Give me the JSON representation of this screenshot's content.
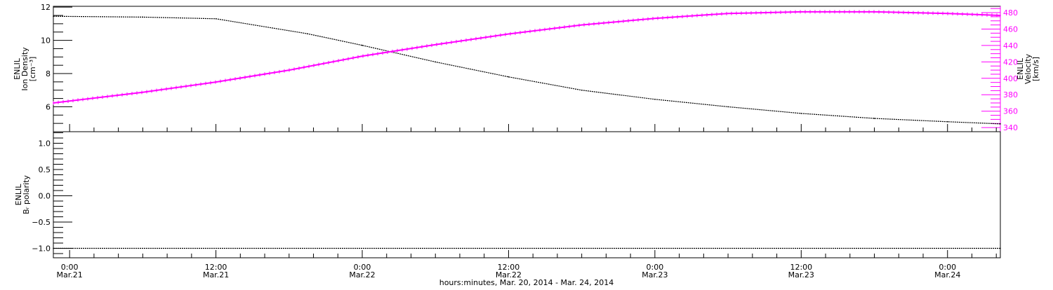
{
  "chart_data": [
    {
      "type": "line",
      "panel": "top",
      "ylabel": [
        "ENLIL",
        "Ion Density",
        "[cm⁻³]"
      ],
      "y2label": [
        "ENLIL",
        "Velocity",
        "[km/s]"
      ],
      "ylim": [
        4.5,
        12.05
      ],
      "y2lim": [
        335,
        487.7
      ],
      "yticks": [
        6,
        8,
        10,
        12
      ],
      "y2ticks": [
        340,
        360,
        380,
        400,
        420,
        440,
        460,
        480
      ],
      "grid": false,
      "series": [
        {
          "axis": "left",
          "color": "#000000",
          "marker": "dot",
          "x": [
            "2014-03-20 22:40",
            "2014-03-21 06:00",
            "2014-03-21 12:00",
            "2014-03-21 19:30",
            "2014-03-22 00:00",
            "2014-03-22 06:00",
            "2014-03-22 12:00",
            "2014-03-22 18:00",
            "2014-03-23 00:00",
            "2014-03-23 06:00",
            "2014-03-23 12:00",
            "2014-03-23 18:00",
            "2014-03-24 00:00",
            "2014-03-24 04:20"
          ],
          "y": [
            11.45,
            11.4,
            11.3,
            10.4,
            9.7,
            8.7,
            7.8,
            7.0,
            6.45,
            6.0,
            5.6,
            5.3,
            5.1,
            4.97
          ]
        },
        {
          "axis": "right",
          "color": "#ff00ff",
          "marker": "plus",
          "x": [
            "2014-03-20 22:40",
            "2014-03-21 06:00",
            "2014-03-21 12:00",
            "2014-03-21 18:00",
            "2014-03-22 00:00",
            "2014-03-22 06:00",
            "2014-03-22 12:00",
            "2014-03-22 18:00",
            "2014-03-23 00:00",
            "2014-03-23 06:00",
            "2014-03-23 12:00",
            "2014-03-23 18:00",
            "2014-03-24 00:00",
            "2014-03-24 04:20"
          ],
          "y": [
            370,
            383,
            395.5,
            410,
            427,
            441,
            454,
            465,
            473,
            479,
            481,
            481,
            479,
            476.6
          ]
        }
      ]
    },
    {
      "type": "line",
      "panel": "bottom",
      "ylabel": [
        "ENLIL",
        "Bᵣ polarity"
      ],
      "ylim": [
        -1.18,
        1.22
      ],
      "yticks": [
        "-1.0",
        "-0.5",
        "0.0",
        "0.5",
        "1.0"
      ],
      "grid": false,
      "series": [
        {
          "color": "#000000",
          "marker": "dot",
          "x": [
            "2014-03-20 22:40",
            "2014-03-24 04:20"
          ],
          "y": [
            -1,
            -1
          ]
        }
      ]
    }
  ],
  "xaxis": {
    "xlim": [
      "2014-03-20 22:40",
      "2014-03-24 04:20"
    ],
    "ticks": [
      {
        "time": "2014-03-21 00:00",
        "line1": "0:00",
        "line2": "Mar.21"
      },
      {
        "time": "2014-03-21 12:00",
        "line1": "12:00",
        "line2": "Mar.21"
      },
      {
        "time": "2014-03-22 00:00",
        "line1": "0:00",
        "line2": "Mar.22"
      },
      {
        "time": "2014-03-22 12:00",
        "line1": "12:00",
        "line2": "Mar.22"
      },
      {
        "time": "2014-03-23 00:00",
        "line1": "0:00",
        "line2": "Mar.23"
      },
      {
        "time": "2014-03-23 12:00",
        "line1": "12:00",
        "line2": "Mar.23"
      },
      {
        "time": "2014-03-24 00:00",
        "line1": "0:00",
        "line2": "Mar.24"
      }
    ],
    "minor_tick_hours": 2,
    "label": "hours:minutes, Mar. 20, 2014 - Mar. 24, 2014"
  }
}
